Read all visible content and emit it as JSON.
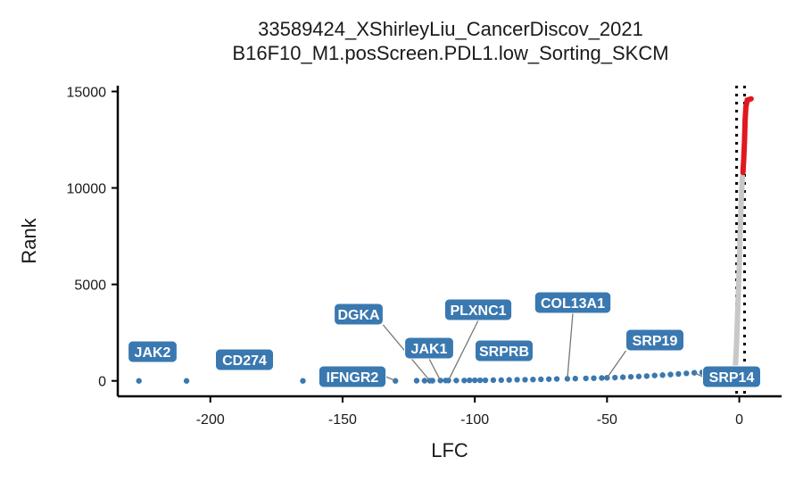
{
  "chart_data": {
    "type": "scatter",
    "title": "33589424_XShirleyLiu_CancerDiscov_2021",
    "subtitle": "B16F10_M1.posScreen.PDL1.low_Sorting_SKCM",
    "xlabel": "LFC",
    "ylabel": "Rank",
    "xlim": [
      -235,
      16
    ],
    "ylim": [
      -800,
      15300
    ],
    "x_ticks": [
      -200,
      -150,
      -100,
      -50,
      0
    ],
    "x_tick_labels": [
      "-200",
      "-150",
      "-100",
      "-50",
      "0"
    ],
    "y_ticks": [
      0,
      5000,
      10000,
      15000
    ],
    "y_tick_labels": [
      "0",
      "5000",
      "10000",
      "15000"
    ],
    "vlines": [
      -1,
      2
    ],
    "grid": false,
    "legend": "none",
    "colors": {
      "depleted": "#3a78b0",
      "neutral": "#c8c8c8",
      "enriched": "#e0181f",
      "label_fill": "#3a78b0",
      "vline": "#000000"
    },
    "labeled_points": [
      {
        "gene": "JAK2",
        "lfc": -227,
        "rank": 0
      },
      {
        "gene": "CD274",
        "lfc": -209,
        "rank": 0
      },
      {
        "gene": "IFNGR2",
        "lfc": -130,
        "rank": 0
      },
      {
        "gene": "DGKA",
        "lfc": -117,
        "rank": 10
      },
      {
        "gene": "JAK1",
        "lfc": -113,
        "rank": 20
      },
      {
        "gene": "PLXNC1",
        "lfc": -110,
        "rank": 20
      },
      {
        "gene": "SRPRB",
        "lfc": -102,
        "rank": 30
      },
      {
        "gene": "COL13A1",
        "lfc": -65,
        "rank": 110
      },
      {
        "gene": "SRP19",
        "lfc": -50,
        "rank": 160
      },
      {
        "gene": "SRP14",
        "lfc": -17,
        "rank": 420
      }
    ],
    "unlabeled_depleted_points": [
      {
        "lfc": -165,
        "rank": 0
      },
      {
        "lfc": -122,
        "rank": 10
      },
      {
        "lfc": -119,
        "rank": 10
      },
      {
        "lfc": -116,
        "rank": 10
      },
      {
        "lfc": -111,
        "rank": 20
      },
      {
        "lfc": -107,
        "rank": 20
      },
      {
        "lfc": -104,
        "rank": 20
      },
      {
        "lfc": -100,
        "rank": 30
      },
      {
        "lfc": -98,
        "rank": 30
      },
      {
        "lfc": -96,
        "rank": 30
      },
      {
        "lfc": -93,
        "rank": 40
      },
      {
        "lfc": -90,
        "rank": 40
      },
      {
        "lfc": -87,
        "rank": 50
      },
      {
        "lfc": -84,
        "rank": 60
      },
      {
        "lfc": -81,
        "rank": 60
      },
      {
        "lfc": -78,
        "rank": 70
      },
      {
        "lfc": -75,
        "rank": 80
      },
      {
        "lfc": -72,
        "rank": 90
      },
      {
        "lfc": -69,
        "rank": 100
      },
      {
        "lfc": -62,
        "rank": 120
      },
      {
        "lfc": -58,
        "rank": 130
      },
      {
        "lfc": -55,
        "rank": 140
      },
      {
        "lfc": -52,
        "rank": 150
      },
      {
        "lfc": -47,
        "rank": 170
      },
      {
        "lfc": -44,
        "rank": 190
      },
      {
        "lfc": -41,
        "rank": 210
      },
      {
        "lfc": -38,
        "rank": 230
      },
      {
        "lfc": -35,
        "rank": 250
      },
      {
        "lfc": -32,
        "rank": 280
      },
      {
        "lfc": -29,
        "rank": 300
      },
      {
        "lfc": -26,
        "rank": 330
      },
      {
        "lfc": -23,
        "rank": 360
      },
      {
        "lfc": -20,
        "rank": 390
      },
      {
        "lfc": -14,
        "rank": 440
      },
      {
        "lfc": -11,
        "rank": 460
      },
      {
        "lfc": -8,
        "rank": 480
      },
      {
        "lfc": -5,
        "rank": 500
      },
      {
        "lfc": -3,
        "rank": 520
      }
    ],
    "neutral_curve": [
      {
        "lfc": -1.5,
        "rank": 600
      },
      {
        "lfc": -1.0,
        "rank": 2000
      },
      {
        "lfc": -0.5,
        "rank": 4000
      },
      {
        "lfc": 0.0,
        "rank": 6000
      },
      {
        "lfc": 0.4,
        "rank": 8000
      },
      {
        "lfc": 0.8,
        "rank": 9500
      },
      {
        "lfc": 1.2,
        "rank": 10600
      }
    ],
    "enriched_curve": [
      {
        "lfc": 1.4,
        "rank": 10800
      },
      {
        "lfc": 1.7,
        "rank": 11500
      },
      {
        "lfc": 2.0,
        "rank": 12500
      },
      {
        "lfc": 2.2,
        "rank": 13500
      },
      {
        "lfc": 2.5,
        "rank": 14200
      },
      {
        "lfc": 3.0,
        "rank": 14550
      },
      {
        "lfc": 4.5,
        "rank": 14620
      }
    ]
  }
}
